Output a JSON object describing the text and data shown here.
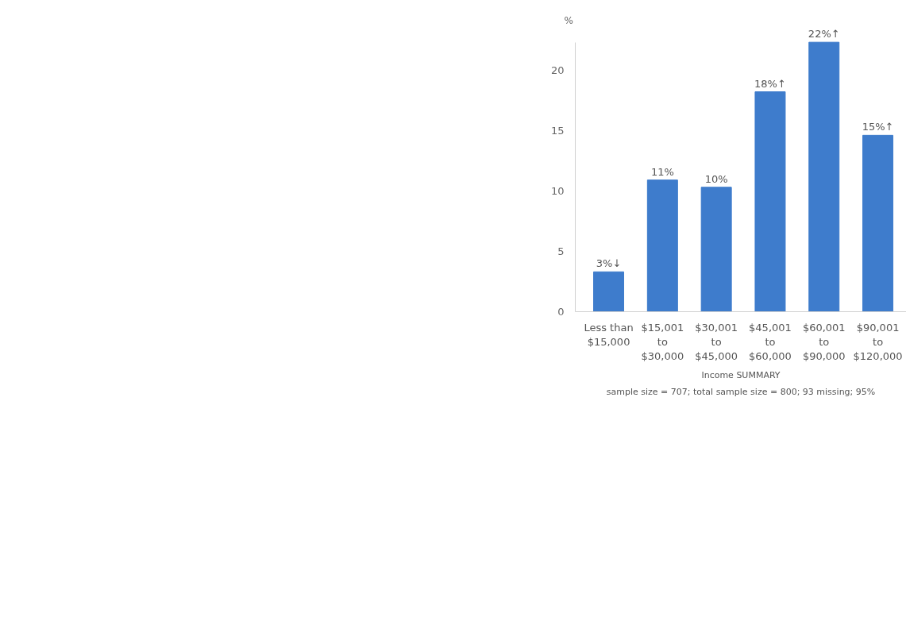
{
  "chart_data": {
    "type": "bar",
    "title": "Income SUMMARY",
    "subtitle": "sample size = 707; total sample size = 800; 93 missing; 95%",
    "ylabel": "%",
    "categories": [
      "Less than $15,000",
      "$15,001 to $30,000",
      "$30,001 to $45,000",
      "$45,001 to $60,000",
      "$60,001 to $90,000",
      "$90,001 to $120,000"
    ],
    "values": [
      3.3,
      10.9,
      10.3,
      18.2,
      22.3,
      14.6
    ],
    "color": "#3e7ccc",
    "value_labels": [
      "3%↓",
      "11%",
      "10%",
      "18%↑",
      "22%↑",
      "15%↑"
    ],
    "ylim": [
      0,
      22.3
    ],
    "yticks": [
      0,
      5,
      10,
      15,
      20
    ],
    "grid": false,
    "legend": false
  }
}
